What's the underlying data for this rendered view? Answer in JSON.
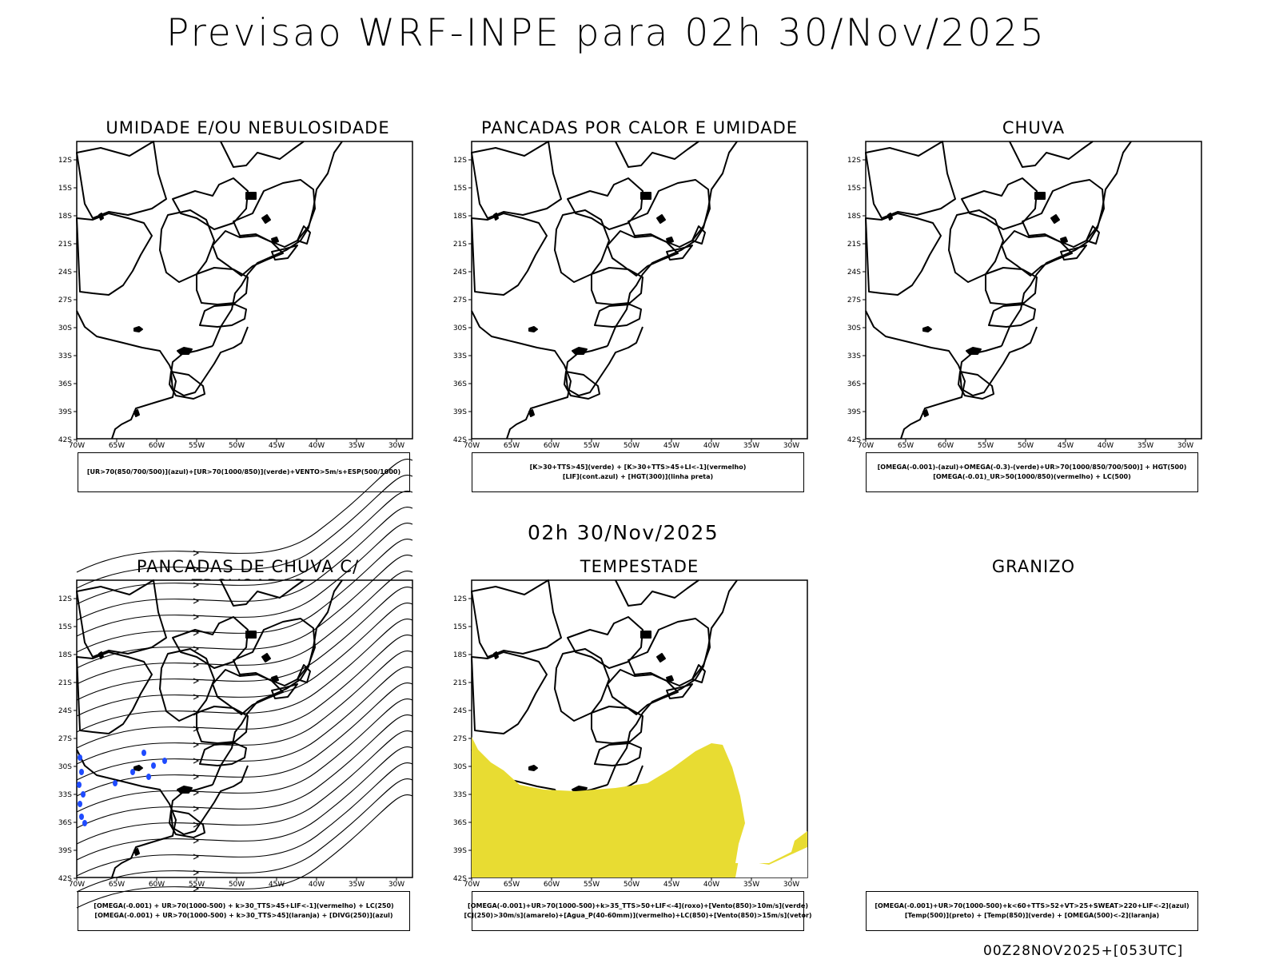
{
  "header": {
    "title": "Previsao WRF-INPE  para 02h 30/Nov/2025"
  },
  "mid_time": "02h 30/Nov/2025",
  "footer_stamp": "00Z28NOV2025+[053UTC]",
  "axes": {
    "lat_ticks": [
      "12S",
      "15S",
      "18S",
      "21S",
      "24S",
      "27S",
      "30S",
      "33S",
      "36S",
      "39S",
      "42S"
    ],
    "lon_ticks": [
      "70W",
      "65W",
      "60W",
      "55W",
      "50W",
      "45W",
      "40W",
      "35W",
      "30W"
    ],
    "lat_range": [
      -42,
      -10
    ],
    "lon_range": [
      -70,
      -28
    ]
  },
  "colors": {
    "tempestade_fill": "#e8dc32",
    "cell_blue": "#1f4bff",
    "lines": "#000000"
  },
  "panels": [
    {
      "id": "umidade",
      "title": "UMIDADE E/OU NEBULOSIDADE",
      "legend": [
        "[UR>70(850/700/500)](azul)+[UR>70(1000/850)](verde)+VENTO>5m/s+ESP(500/1000)"
      ]
    },
    {
      "id": "pancadas-calor",
      "title": "PANCADAS POR CALOR E UMIDADE",
      "legend": [
        "[K>30+TTS>45](verde) + [K>30+TTS>45+LI<-1](vermelho)",
        "[LIF](cont.azul) + [HGT(300)](linha preta)"
      ]
    },
    {
      "id": "chuva",
      "title": "CHUVA",
      "legend": [
        "[OMEGA(-0.001)-(azul)+OMEGA(-0.3)-(verde)+UR>70(1000/850/700/500)] + HGT(500)",
        "[OMEGA(-0.01)_UR>50(1000/850)(vermelho) + LC(500)"
      ]
    },
    {
      "id": "trovoadas",
      "title": "PANCADAS DE CHUVA C/ TROVOADAS",
      "legend": [
        "[OMEGA(-0.001) + UR>70(1000-500) + k>30_TTS>45+LIF<-1](vermelho) + LC(250)",
        "[OMEGA(-0.001) + UR>70(1000-500) + k>30_TTS>45](laranja) + [DIVG(250)](azul)"
      ]
    },
    {
      "id": "tempestade",
      "title": "TEMPESTADE",
      "legend": [
        "[OMEGA(-0.001)+UR>70(1000-500)+k>35_TTS>50+LIF<-4](roxo)+[Vento(850)>10m/s](verde)",
        "[CJ(250)>30m/s](amarelo)+[Agua_P(40-60mm)](vermelho)+LC(850)+[Vento(850)>15m/s](vetor)"
      ]
    },
    {
      "id": "granizo",
      "title": "GRANIZO",
      "legend": [
        "[OMEGA(-0.001)+UR>70(1000-500)+k<60+TTS>52+VT>25+SWEAT>220+LIF<-2](azul)",
        "[Temp(500)](preto) + [Temp(850)](verde) + [OMEGA(500)<-2](laranja)"
      ]
    }
  ]
}
